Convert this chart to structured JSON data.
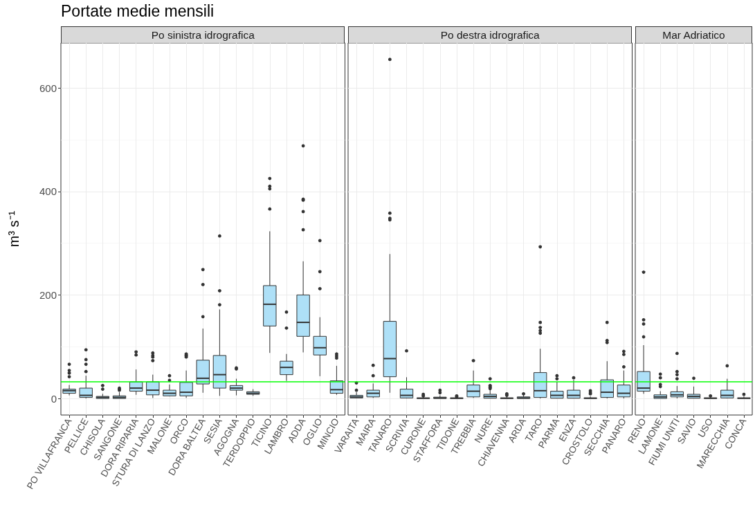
{
  "chart_data": [
    {
      "type": "box",
      "title": "Portate medie mensili",
      "subtitle": "Po sinistra idrografica",
      "ylabel": "m³ s⁻¹",
      "categories": [
        "PO VILLAFRANCA",
        "PELLICE",
        "CHISOLA",
        "SANGONE",
        "DORA RIPARIA",
        "STURA DI LANZO",
        "MALONE",
        "ORCO",
        "DORA BALTEA",
        "SESIA",
        "AGOGNA",
        "TERDOPPIO",
        "TICINO",
        "LAMBRO",
        "ADDA",
        "OGLIO",
        "MINCIO"
      ],
      "series": [
        {
          "color": "#aee0f7",
          "boxes": [
            {
              "low": 6,
              "q1": 10,
              "median": 15,
              "q3": 18,
              "high": 26,
              "outliers": [
                42,
                49,
                54,
                66
              ]
            },
            {
              "low": 0,
              "q1": 2,
              "median": 6,
              "q3": 20,
              "high": 44,
              "outliers": [
                52,
                66,
                75,
                94
              ]
            },
            {
              "low": 0,
              "q1": 0,
              "median": 2,
              "q3": 4,
              "high": 9,
              "outliers": [
                18,
                25
              ]
            },
            {
              "low": 0,
              "q1": 0,
              "median": 2,
              "q3": 5,
              "high": 12,
              "outliers": [
                16,
                18,
                20
              ]
            },
            {
              "low": 7,
              "q1": 14,
              "median": 20,
              "q3": 32,
              "high": 56,
              "outliers": [
                84,
                90
              ]
            },
            {
              "low": 1,
              "q1": 7,
              "median": 16,
              "q3": 32,
              "high": 46,
              "outliers": [
                73,
                80,
                83,
                88
              ]
            },
            {
              "low": 4,
              "q1": 5,
              "median": 10,
              "q3": 16,
              "high": 27,
              "outliers": [
                35,
                44
              ]
            },
            {
              "low": 1,
              "q1": 5,
              "median": 12,
              "q3": 31,
              "high": 54,
              "outliers": [
                80,
                82,
                84,
                86
              ]
            },
            {
              "low": 11,
              "q1": 28,
              "median": 39,
              "q3": 74,
              "high": 135,
              "outliers": [
                158,
                220,
                249
              ]
            },
            {
              "low": 5,
              "q1": 20,
              "median": 46,
              "q3": 83,
              "high": 172,
              "outliers": [
                181,
                208,
                314
              ]
            },
            {
              "low": 6,
              "q1": 16,
              "median": 20,
              "q3": 25,
              "high": 38,
              "outliers": [
                57,
                59
              ]
            },
            {
              "low": 5,
              "q1": 8,
              "median": 10,
              "q3": 13,
              "high": 18
            },
            {
              "low": 88,
              "q1": 140,
              "median": 182,
              "q3": 218,
              "high": 323,
              "outliers": [
                366,
                405,
                410,
                425
              ]
            },
            {
              "low": 34,
              "q1": 46,
              "median": 60,
              "q3": 72,
              "high": 86,
              "outliers": [
                136,
                167
              ]
            },
            {
              "low": 89,
              "q1": 120,
              "median": 147,
              "q3": 200,
              "high": 265,
              "outliers": [
                326,
                361,
                383,
                385,
                488
              ]
            },
            {
              "low": 43,
              "q1": 84,
              "median": 98,
              "q3": 120,
              "high": 157,
              "outliers": [
                212,
                245,
                305
              ]
            },
            {
              "low": 7,
              "q1": 10,
              "median": 17,
              "q3": 34,
              "high": 63,
              "outliers": [
                78,
                82,
                86
              ]
            }
          ]
        }
      ],
      "ylim": [
        -32,
        687
      ],
      "yticks": [
        0,
        200,
        400,
        600
      ],
      "grid": true,
      "ref_lines": [
        {
          "axis": "y",
          "value": 32,
          "color": "#00ff00"
        }
      ]
    },
    {
      "type": "box",
      "subtitle": "Po destra idrografica",
      "categories": [
        "VARAITA",
        "MAIRA",
        "TANARO",
        "SCRIVIA",
        "CURONE",
        "STAFFORA",
        "TIDONE",
        "TREBBIA",
        "NURE",
        "CHIAVENNA",
        "ARDA",
        "TARO",
        "PARMA",
        "ENZA",
        "CROSTOLO",
        "SECCHIA",
        "PANARO"
      ],
      "series": [
        {
          "color": "#aee0f7",
          "boxes": [
            {
              "low": 0,
              "q1": 1,
              "median": 3,
              "q3": 6,
              "high": 12,
              "outliers": [
                16,
                30
              ]
            },
            {
              "low": 1,
              "q1": 3,
              "median": 10,
              "q3": 16,
              "high": 29,
              "outliers": [
                44,
                64
              ]
            },
            {
              "low": 11,
              "q1": 42,
              "median": 77,
              "q3": 149,
              "high": 279,
              "outliers": [
                345,
                348,
                358,
                655
              ]
            },
            {
              "low": 0,
              "q1": 1,
              "median": 6,
              "q3": 18,
              "high": 41,
              "outliers": [
                92
              ]
            },
            {
              "low": 0,
              "q1": 0,
              "median": 0.5,
              "q3": 1,
              "high": 3,
              "outliers": [
                5,
                8
              ]
            },
            {
              "low": 0,
              "q1": 0,
              "median": 1,
              "q3": 2.5,
              "high": 6,
              "outliers": [
                11,
                16
              ]
            },
            {
              "low": 0,
              "q1": 0,
              "median": 0.5,
              "q3": 1,
              "high": 2,
              "outliers": [
                3,
                5
              ]
            },
            {
              "low": 1,
              "q1": 3,
              "median": 14,
              "q3": 26,
              "high": 54,
              "outliers": [
                73
              ]
            },
            {
              "low": 0,
              "q1": 0.5,
              "median": 4,
              "q3": 8,
              "high": 16,
              "outliers": [
                19,
                21,
                23,
                25,
                38
              ]
            },
            {
              "low": 0,
              "q1": 0,
              "median": 0.5,
              "q3": 1,
              "high": 3,
              "outliers": [
                6,
                9
              ]
            },
            {
              "low": 0,
              "q1": 0,
              "median": 1,
              "q3": 3,
              "high": 7,
              "outliers": [
                9
              ]
            },
            {
              "low": 0,
              "q1": 2,
              "median": 15,
              "q3": 50,
              "high": 96,
              "outliers": [
                126,
                131,
                137,
                147,
                293
              ]
            },
            {
              "low": 0,
              "q1": 0.5,
              "median": 6,
              "q3": 14,
              "high": 32,
              "outliers": [
                38,
                44
              ]
            },
            {
              "low": 0,
              "q1": 0.5,
              "median": 6,
              "q3": 16,
              "high": 36,
              "outliers": [
                40
              ]
            },
            {
              "low": 0,
              "q1": 0,
              "median": 0.5,
              "q3": 1,
              "high": 4,
              "outliers": [
                9,
                12,
                15
              ]
            },
            {
              "low": 0,
              "q1": 2,
              "median": 12,
              "q3": 36,
              "high": 72,
              "outliers": [
                108,
                112,
                147
              ]
            },
            {
              "low": 0,
              "q1": 3,
              "median": 10,
              "q3": 26,
              "high": 54,
              "outliers": [
                61,
                85,
                91
              ]
            }
          ]
        }
      ],
      "ylim": [
        -32,
        687
      ],
      "yticks": [
        0,
        200,
        400,
        600
      ],
      "tick_labels": "x",
      "grid": true,
      "ref_lines": [
        {
          "axis": "y",
          "value": 32,
          "color": "#00ff00"
        }
      ]
    },
    {
      "type": "box",
      "subtitle": "Mar Adriatico",
      "categories": [
        "RENO",
        "LAMONE",
        "FIUMI UNITI",
        "SAVIO",
        "USO",
        "MARECCHIA",
        "CONCA"
      ],
      "series": [
        {
          "color": "#aee0f7",
          "boxes": [
            {
              "low": 9,
              "q1": 14,
              "median": 20,
              "q3": 52,
              "high": 103,
              "outliers": [
                119,
                144,
                152,
                244
              ]
            },
            {
              "low": 0,
              "q1": 0,
              "median": 3,
              "q3": 7,
              "high": 14,
              "outliers": [
                23,
                27,
                40,
                47
              ]
            },
            {
              "low": 0,
              "q1": 3,
              "median": 7,
              "q3": 13,
              "high": 24,
              "outliers": [
                38,
                46,
                52,
                87
              ]
            },
            {
              "low": 0,
              "q1": 0.5,
              "median": 4,
              "q3": 8,
              "high": 23,
              "outliers": [
                39
              ]
            },
            {
              "low": 0,
              "q1": 0,
              "median": 0.5,
              "q3": 1,
              "high": 3,
              "outliers": [
                5
              ]
            },
            {
              "low": 0,
              "q1": 1,
              "median": 6,
              "q3": 16,
              "high": 38,
              "outliers": [
                63
              ]
            },
            {
              "low": 0,
              "q1": 0,
              "median": 0.5,
              "q3": 1,
              "high": 4,
              "outliers": [
                8
              ]
            }
          ]
        }
      ],
      "ylim": [
        -32,
        687
      ],
      "yticks": [
        0,
        200,
        400,
        600
      ],
      "tick_labels": "x",
      "grid": true,
      "ref_lines": [
        {
          "axis": "y",
          "value": 32,
          "color": "#00ff00"
        }
      ]
    }
  ]
}
